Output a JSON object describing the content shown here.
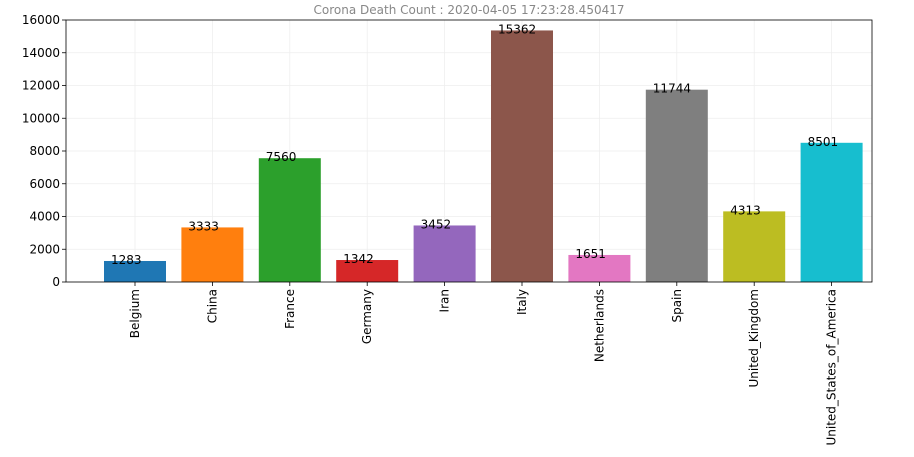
{
  "chart_data": {
    "type": "bar",
    "title": "Corona Death Count : 2020-04-05 17:23:28.450417",
    "xlabel": "",
    "ylabel": "",
    "ylim": [
      0,
      16000
    ],
    "yticks": [
      0,
      2000,
      4000,
      6000,
      8000,
      10000,
      12000,
      14000,
      16000
    ],
    "grid": true,
    "categories": [
      "Belgium",
      "China",
      "France",
      "Germany",
      "Iran",
      "Italy",
      "Netherlands",
      "Spain",
      "United_Kingdom",
      "United_States_of_America"
    ],
    "values": [
      1283,
      3333,
      7560,
      1342,
      3452,
      15362,
      1651,
      11744,
      4313,
      8501
    ],
    "colors": [
      "#1f77b4",
      "#ff7f0e",
      "#2ca02c",
      "#d62728",
      "#9467bd",
      "#8c564b",
      "#e377c2",
      "#7f7f7f",
      "#bcbd22",
      "#17becf"
    ]
  }
}
